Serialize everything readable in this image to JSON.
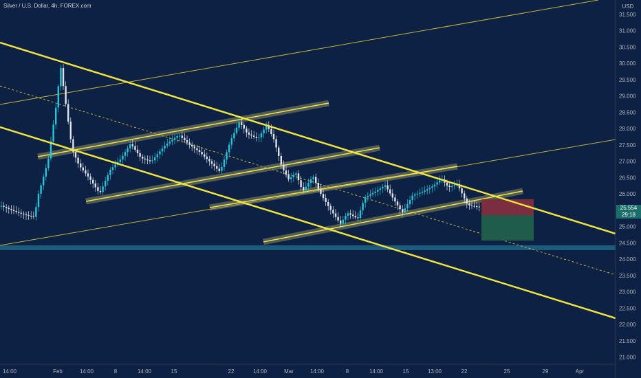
{
  "header": {
    "title": "Silver / U.S. Dollar, 4h, FOREX.com"
  },
  "price_axis": {
    "currency": "USD",
    "ticks": [
      "31.500",
      "31.000",
      "30.500",
      "30.000",
      "29.500",
      "29.000",
      "28.500",
      "28.000",
      "27.500",
      "27.000",
      "26.500",
      "26.000",
      "25.000",
      "24.500",
      "24.000",
      "23.500",
      "23.000",
      "22.500",
      "22.000",
      "21.500",
      "21.000"
    ]
  },
  "current_price": {
    "price": "25.554",
    "countdown": "29:18"
  },
  "time_axis": {
    "labels": [
      "14:00",
      "Feb",
      "14:00",
      "8",
      "14:00",
      "15",
      "22",
      "14:00",
      "Mar",
      "14:00",
      "8",
      "14:00",
      "15",
      "13:00",
      "22",
      "25",
      "29",
      "Apr"
    ]
  }
}
